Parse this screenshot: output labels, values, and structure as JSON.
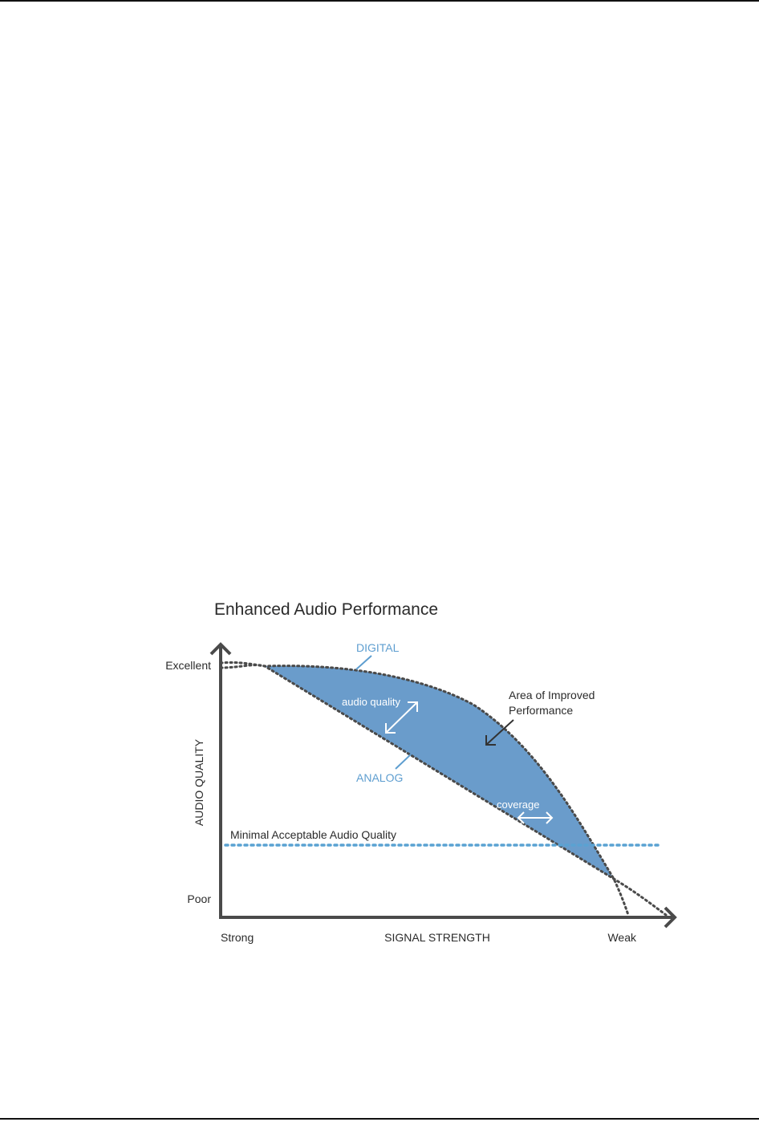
{
  "figure": {
    "title": "Enhanced Audio Performance",
    "y_axis_label": "AUDIO QUALITY",
    "y_top_label": "Excellent",
    "y_bottom_label": "Poor",
    "x_axis_label": "SIGNAL STRENGTH",
    "x_left_label": "Strong",
    "x_right_label": "Weak",
    "digital_label": "DIGITAL",
    "analog_label": "ANALOG",
    "audio_quality_label": "audio quality",
    "coverage_label": "coverage",
    "threshold_label": "Minimal Acceptable Audio Quality",
    "area_label_line1": "Area of Improved",
    "area_label_line2": "Performance"
  },
  "colors": {
    "fill": "#6a9ccb",
    "accent_text": "#5e9ed0",
    "threshold_line": "#5aa2d2",
    "axis": "#4a4a4a",
    "curve_dots": "#4a4a4a",
    "text": "#2b2b2b"
  }
}
